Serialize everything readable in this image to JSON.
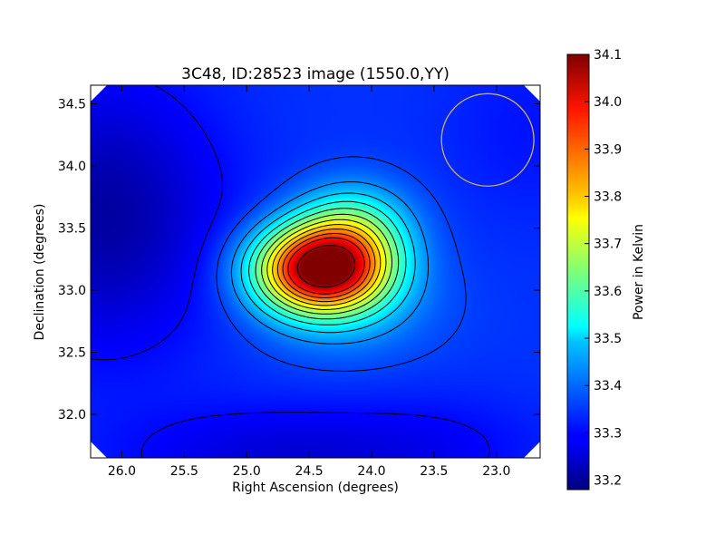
{
  "chart_data": {
    "type": "heatmap",
    "title": "3C48, ID:28523 image (1550.0,YY)",
    "xlabel": "Right Ascension (degrees)",
    "ylabel": "Declination (degrees)",
    "xlim": [
      26.25,
      22.65
    ],
    "ylim": [
      31.65,
      34.65
    ],
    "x_ticks": [
      "26.0",
      "25.5",
      "25.0",
      "24.5",
      "24.0",
      "23.5",
      "23.0"
    ],
    "x_tick_values": [
      26.0,
      25.5,
      25.0,
      24.5,
      24.0,
      23.5,
      23.0
    ],
    "y_ticks": [
      "32.0",
      "32.5",
      "33.0",
      "33.5",
      "34.0",
      "34.5"
    ],
    "y_tick_values": [
      32.0,
      32.5,
      33.0,
      33.5,
      34.0,
      34.5
    ],
    "colorbar": {
      "label": "Power in Kelvin",
      "range": [
        33.18,
        34.1
      ],
      "ticks": [
        "33.2",
        "33.3",
        "33.4",
        "33.5",
        "33.6",
        "33.7",
        "33.8",
        "33.9",
        "34.0",
        "34.1"
      ],
      "tick_values": [
        33.2,
        33.3,
        33.4,
        33.5,
        33.6,
        33.7,
        33.8,
        33.9,
        34.0,
        34.1
      ],
      "colormap": "jet"
    },
    "field": {
      "background": 33.34,
      "components": [
        {
          "ra": 24.4,
          "dec": 33.17,
          "amp": 0.76,
          "sigma_ra": 0.36,
          "sigma_dec": 0.24
        },
        {
          "ra": 24.15,
          "dec": 33.5,
          "amp": 0.22,
          "sigma_ra": 0.32,
          "sigma_dec": 0.25
        },
        {
          "ra": 24.2,
          "dec": 32.85,
          "amp": 0.08,
          "sigma_ra": 0.5,
          "sigma_dec": 0.3
        },
        {
          "ra": 26.15,
          "dec": 33.6,
          "amp": -0.13,
          "sigma_ra": 0.65,
          "sigma_dec": 0.75
        },
        {
          "ra": 24.7,
          "dec": 31.65,
          "amp": -0.08,
          "sigma_ra": 0.9,
          "sigma_dec": 0.3
        },
        {
          "ra": 23.4,
          "dec": 31.75,
          "amp": -0.03,
          "sigma_ra": 0.6,
          "sigma_dec": 0.3
        },
        {
          "ra": 22.7,
          "dec": 34.3,
          "amp": -0.03,
          "sigma_ra": 0.5,
          "sigma_dec": 0.5
        }
      ],
      "peak_value": 34.1,
      "peak_ra": 24.4,
      "peak_dec": 33.17
    },
    "contour_levels": [
      33.3,
      33.355,
      33.42,
      33.48,
      33.54,
      33.6,
      33.66,
      33.72,
      33.78,
      33.84,
      33.9,
      33.96,
      34.06
    ],
    "annotation": {
      "shape": "circle",
      "ra": 23.07,
      "dec": 34.21,
      "radius_deg": 0.37,
      "color": "#c8b45a"
    },
    "grid": false,
    "legend": "none"
  }
}
